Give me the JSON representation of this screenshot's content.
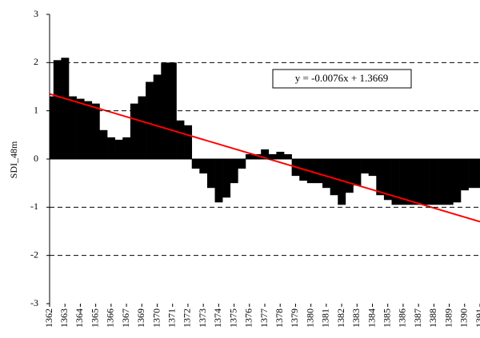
{
  "chart_data": {
    "type": "bar",
    "y_axis_label": "SDI_48m",
    "annotation": "y = -0.0076x + 1.3669",
    "categories": [
      "1362",
      null,
      "1363",
      null,
      "1364",
      null,
      "1365",
      null,
      "1366",
      null,
      "1367",
      null,
      "1369",
      null,
      "1370",
      null,
      "1371",
      null,
      "1372",
      null,
      "1373",
      null,
      "1374",
      null,
      "1375",
      null,
      "1376",
      null,
      "1377",
      null,
      "1378",
      null,
      "1379",
      null,
      "1380",
      null,
      "1381",
      null,
      "1382",
      null,
      "1383",
      null,
      "1384",
      null,
      "1385",
      null,
      "1386",
      null,
      "1387",
      null,
      "1388",
      null,
      "1389",
      null,
      "1390",
      null,
      "1391"
    ],
    "values": [
      1.3,
      2.05,
      2.1,
      1.3,
      1.25,
      1.2,
      1.15,
      0.6,
      0.45,
      0.4,
      0.45,
      1.15,
      1.3,
      1.6,
      1.75,
      2.0,
      2.0,
      0.8,
      0.7,
      -0.2,
      -0.3,
      -0.6,
      -0.9,
      -0.8,
      -0.5,
      -0.2,
      0.1,
      0.1,
      0.2,
      0.1,
      0.15,
      0.1,
      -0.35,
      -0.45,
      -0.5,
      -0.5,
      -0.6,
      -0.75,
      -0.95,
      -0.7,
      -0.55,
      -0.3,
      -0.35,
      -0.75,
      -0.85,
      -0.95,
      -0.95,
      -0.95,
      -0.95,
      -0.95,
      -0.95,
      -0.95,
      -0.95,
      -0.9,
      -0.65,
      -0.6,
      -0.6
    ],
    "color": "#000000",
    "trendline": {
      "start": 1.35,
      "end": -1.3,
      "color": "#ff0000"
    },
    "ylim": [
      -3,
      3
    ],
    "yticks": [
      -3,
      -2,
      -1,
      0,
      1,
      2,
      3
    ],
    "grid": true
  }
}
